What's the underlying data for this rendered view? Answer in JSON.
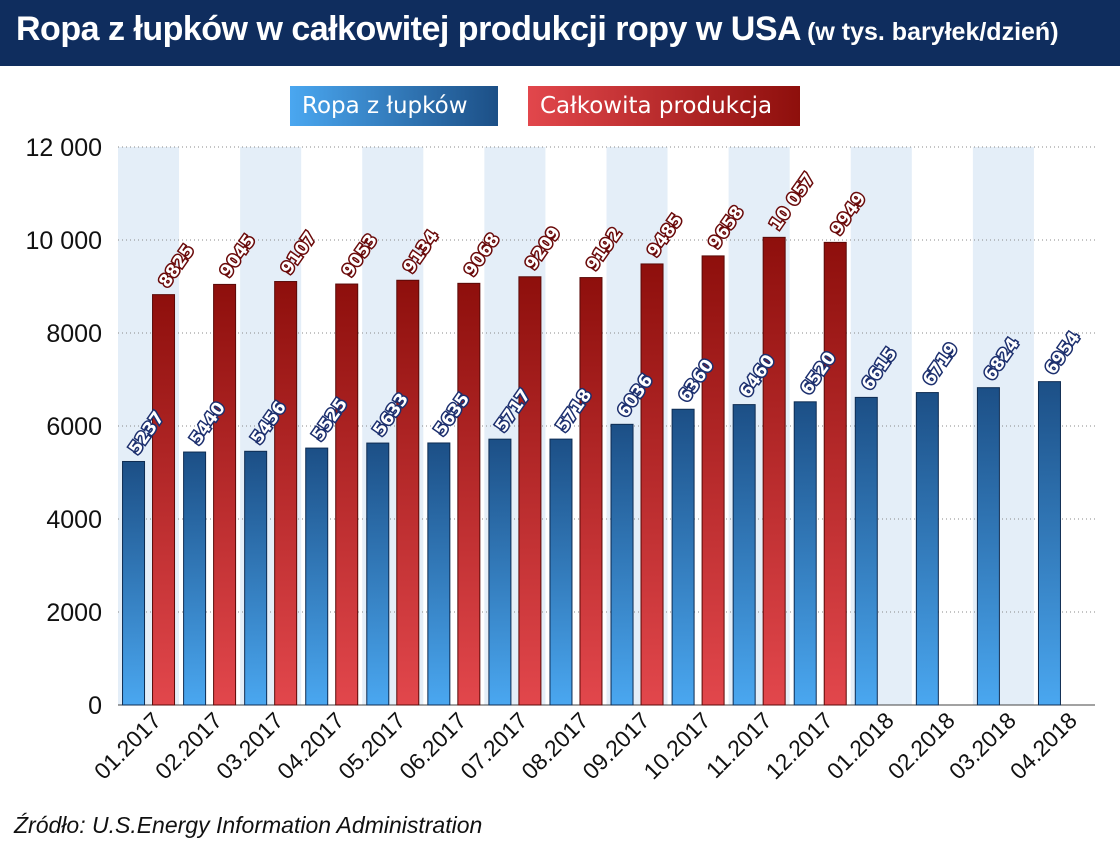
{
  "title": {
    "main": "Ropa z łupków w całkowitej produkcji ropy w USA",
    "unit": "(w tys. baryłek/dzień)"
  },
  "legend": {
    "shale": "Ropa z łupków",
    "total": "Całkowita produkcja"
  },
  "source": "Źródło: U.S.Energy Information Administration",
  "colors": {
    "title_bg": "#0f2d5e",
    "shale_light": "#4aa7f0",
    "shale_dark": "#1c4f86",
    "total_light": "#e2474c",
    "total_dark": "#8e0f0c",
    "stripe": "#e4eef8"
  },
  "chart_data": {
    "type": "bar",
    "categories": [
      "01.2017",
      "02.2017",
      "03.2017",
      "04.2017",
      "05.2017",
      "06.2017",
      "07.2017",
      "08.2017",
      "09.2017",
      "10.2017",
      "11.2017",
      "12.2017",
      "01.2018",
      "02.2018",
      "03.2018",
      "04.2018"
    ],
    "series": [
      {
        "name": "Ropa z łupków",
        "values": [
          5237,
          5440,
          5456,
          5525,
          5633,
          5635,
          5717,
          5718,
          6036,
          6360,
          6460,
          6520,
          6615,
          6719,
          6824,
          6954
        ],
        "labels": [
          "5237",
          "5440",
          "5456",
          "5525",
          "5633",
          "5635",
          "5717",
          "5718",
          "6036",
          "6360",
          "6460",
          "6520",
          "6615",
          "6719",
          "6824",
          "6954"
        ]
      },
      {
        "name": "Całkowita produkcja",
        "values": [
          8825,
          9045,
          9107,
          9053,
          9134,
          9068,
          9209,
          9192,
          9485,
          9658,
          10057,
          9949,
          null,
          null,
          null,
          null
        ],
        "labels": [
          "8825",
          "9045",
          "9107",
          "9053",
          "9134",
          "9068",
          "9209",
          "9192",
          "9485",
          "9658",
          "10 057",
          "9949",
          null,
          null,
          null,
          null
        ]
      }
    ],
    "yticks": [
      0,
      2000,
      4000,
      6000,
      8000,
      10000,
      12000
    ],
    "ytick_labels": [
      "0",
      "2000",
      "4000",
      "6000",
      "8000",
      "10 000",
      "12 000"
    ],
    "ylim": [
      0,
      12000
    ],
    "grid": true
  }
}
